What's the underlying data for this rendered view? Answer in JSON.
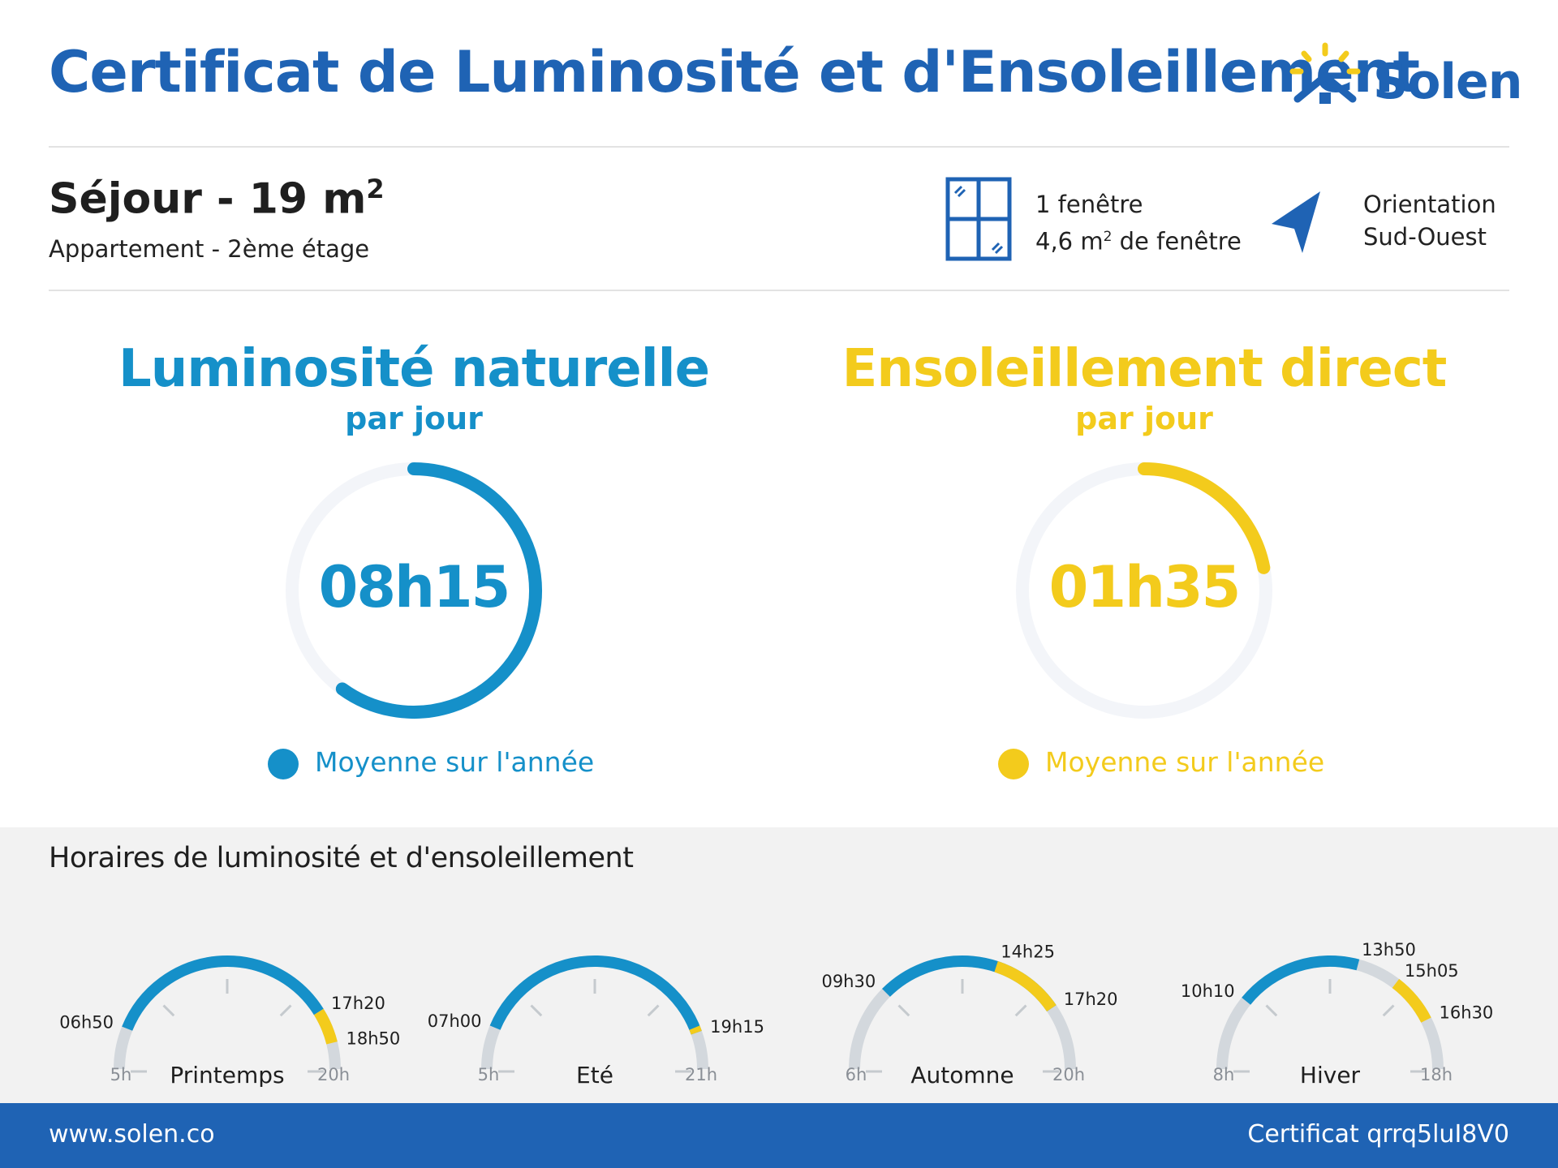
{
  "header": {
    "title": "Certificat de Luminosité et d'Ensoleillement",
    "brand": "Solen"
  },
  "room": {
    "name": "Séjour - 19 m",
    "area_exponent": "2",
    "subtitle": "Appartement - 2ème étage"
  },
  "windows": {
    "count_label": "1 fenêtre",
    "area_prefix": "4,6 m",
    "area_exponent": "2",
    "area_suffix": " de fenêtre"
  },
  "orientation": {
    "label": "Orientation",
    "value": "Sud-Ouest"
  },
  "metrics": [
    {
      "title": "Luminosité naturelle",
      "subtitle": "par jour",
      "value": "08h15",
      "fraction": 0.6,
      "legend": "Moyenne sur l'année",
      "color": "#1590c9"
    },
    {
      "title": "Ensoleillement direct",
      "subtitle": "par jour",
      "value": "01h35",
      "fraction": 0.22,
      "legend": "Moyenne sur l'année",
      "color": "#f3cb1c"
    }
  ],
  "schedule": {
    "title": "Horaires de luminosité et d'ensoleillement",
    "seasons": [
      {
        "name": "Printemps",
        "start_label": "5h",
        "end_label": "20h",
        "range": [
          5,
          20
        ],
        "light": [
          6.833,
          17.333
        ],
        "sun": [
          17.333,
          18.833
        ],
        "light_start_label": "06h50",
        "sun_start_label": "17h20",
        "sun_end_label": "18h50"
      },
      {
        "name": "Eté",
        "start_label": "5h",
        "end_label": "21h",
        "range": [
          5,
          21
        ],
        "light": [
          7.0,
          19.25
        ],
        "sun": [
          19.0,
          19.25
        ],
        "light_start_label": "07h00",
        "sun_start_label": "",
        "sun_end_label": "19h15"
      },
      {
        "name": "Automne",
        "start_label": "6h",
        "end_label": "20h",
        "range": [
          6,
          20
        ],
        "light": [
          9.5,
          17.333
        ],
        "sun": [
          14.417,
          17.333
        ],
        "light_start_label": "09h30",
        "sun_start_label": "14h25",
        "sun_end_label": "17h20"
      },
      {
        "name": "Hiver",
        "start_label": "8h",
        "end_label": "18h",
        "range": [
          8,
          18
        ],
        "light": [
          10.167,
          13.833
        ],
        "sun": [
          15.083,
          16.5
        ],
        "light_start_label": "10h10",
        "light_end_label": "13h50",
        "sun_start_label": "15h05",
        "sun_end_label": "16h30"
      }
    ]
  },
  "footer": {
    "website": "www.solen.co",
    "certificate": "Certificat qrrq5luI8V0"
  },
  "colors": {
    "brand_blue": "#1f63b4",
    "light_blue": "#1590c9",
    "sun_yellow": "#f3cb1c",
    "track_grey": "#d3d8dd"
  }
}
